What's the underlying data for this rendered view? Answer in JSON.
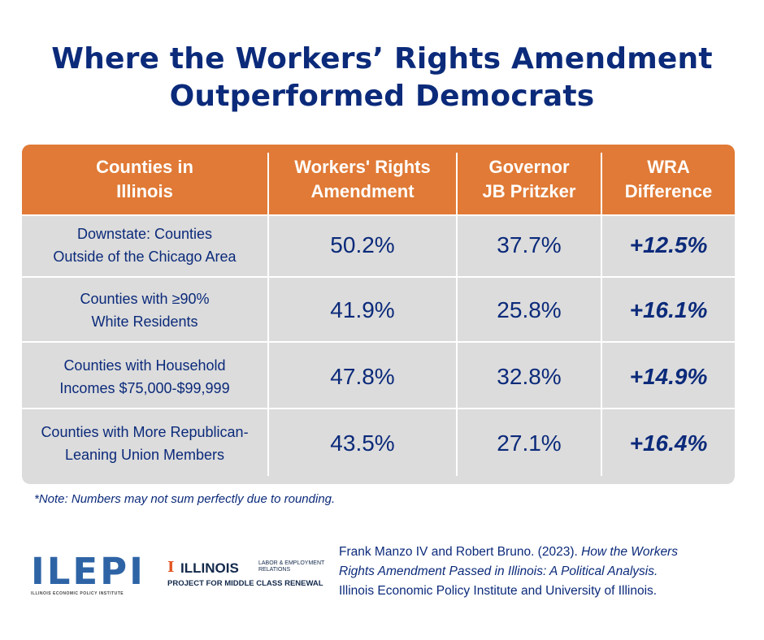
{
  "title": {
    "line1": "Where the Workers’ Rights Amendment",
    "line2": "Outperformed Democrats"
  },
  "colors": {
    "navy": "#0b2a7a",
    "header_orange": "#e07a36",
    "row_gray": "#dcdcdc"
  },
  "chart_data": {
    "type": "table",
    "columns": [
      {
        "line1": "Counties in",
        "line2": "Illinois"
      },
      {
        "line1": "Workers' Rights",
        "line2": "Amendment"
      },
      {
        "line1": "Governor",
        "line2": "JB Pritzker"
      },
      {
        "line1": "WRA",
        "line2": "Difference"
      }
    ],
    "rows": [
      {
        "cat1": "Downstate: Counties",
        "cat2": "Outside of the Chicago Area",
        "wra": "50.2%",
        "pritzker": "37.7%",
        "diff": "+12.5%"
      },
      {
        "cat1": "Counties with ≥90%",
        "cat2": "White Residents",
        "wra": "41.9%",
        "pritzker": "25.8%",
        "diff": "+16.1%"
      },
      {
        "cat1": "Counties with Household",
        "cat2": "Incomes $75,000-$99,999",
        "wra": "47.8%",
        "pritzker": "32.8%",
        "diff": "+14.9%"
      },
      {
        "cat1": "Counties with More Republican-",
        "cat2": "Leaning Union Members",
        "wra": "43.5%",
        "pritzker": "27.1%",
        "diff": "+16.4%"
      }
    ],
    "note": "*Note: Numbers may not sum perfectly due to rounding."
  },
  "logos": {
    "ilepi": "ILEPI",
    "ilepi_sub": "ILLINOIS ECONOMIC POLICY INSTITUTE",
    "illinois": "ILLINOIS",
    "ler_line1": "LABOR & EMPLOYMENT",
    "ler_line2": "RELATIONS",
    "project": "PROJECT FOR MIDDLE CLASS RENEWAL"
  },
  "citation": {
    "line1_plain": "Frank Manzo IV and Robert Bruno. (2023).",
    "line1_italic": "How the Workers",
    "line2_italic": "Rights Amendment Passed in Illinois: A Political Analysis.",
    "line3": "Illinois Economic Policy Institute and University of Illinois."
  }
}
